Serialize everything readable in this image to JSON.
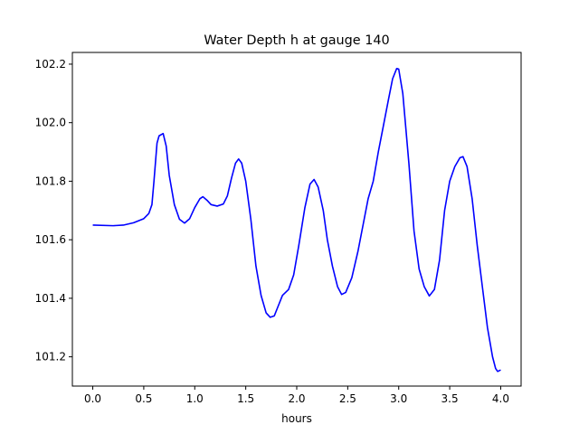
{
  "chart_data": {
    "type": "line",
    "title": "Water Depth h at gauge 140",
    "xlabel": "hours",
    "ylabel": "",
    "xlim": [
      -0.2,
      4.2
    ],
    "ylim": [
      101.1,
      102.24
    ],
    "xticks": [
      "0.0",
      "0.5",
      "1.0",
      "1.5",
      "2.0",
      "2.5",
      "3.0",
      "3.5",
      "4.0"
    ],
    "yticks": [
      "101.2",
      "101.4",
      "101.6",
      "101.8",
      "102.0",
      "102.2"
    ],
    "grid": false,
    "legend": "none",
    "series": [
      {
        "color": "#0000ff",
        "points": [
          [
            0.0,
            101.65
          ],
          [
            0.2,
            101.648
          ],
          [
            0.3,
            101.65
          ],
          [
            0.4,
            101.658
          ],
          [
            0.5,
            101.672
          ],
          [
            0.55,
            101.69
          ],
          [
            0.58,
            101.72
          ],
          [
            0.6,
            101.8
          ],
          [
            0.63,
            101.93
          ],
          [
            0.65,
            101.955
          ],
          [
            0.69,
            101.963
          ],
          [
            0.72,
            101.92
          ],
          [
            0.75,
            101.82
          ],
          [
            0.8,
            101.72
          ],
          [
            0.85,
            101.67
          ],
          [
            0.9,
            101.657
          ],
          [
            0.95,
            101.672
          ],
          [
            1.0,
            101.71
          ],
          [
            1.05,
            101.74
          ],
          [
            1.08,
            101.747
          ],
          [
            1.12,
            101.735
          ],
          [
            1.16,
            101.72
          ],
          [
            1.22,
            101.715
          ],
          [
            1.28,
            101.722
          ],
          [
            1.32,
            101.75
          ],
          [
            1.36,
            101.81
          ],
          [
            1.4,
            101.862
          ],
          [
            1.43,
            101.876
          ],
          [
            1.46,
            101.862
          ],
          [
            1.5,
            101.8
          ],
          [
            1.55,
            101.67
          ],
          [
            1.6,
            101.51
          ],
          [
            1.65,
            101.41
          ],
          [
            1.7,
            101.35
          ],
          [
            1.74,
            101.335
          ],
          [
            1.78,
            101.34
          ],
          [
            1.82,
            101.375
          ],
          [
            1.86,
            101.41
          ],
          [
            1.92,
            101.43
          ],
          [
            1.97,
            101.48
          ],
          [
            2.02,
            101.58
          ],
          [
            2.08,
            101.71
          ],
          [
            2.13,
            101.79
          ],
          [
            2.17,
            101.806
          ],
          [
            2.21,
            101.78
          ],
          [
            2.26,
            101.7
          ],
          [
            2.3,
            101.6
          ],
          [
            2.35,
            101.51
          ],
          [
            2.4,
            101.44
          ],
          [
            2.44,
            101.413
          ],
          [
            2.48,
            101.42
          ],
          [
            2.54,
            101.47
          ],
          [
            2.6,
            101.56
          ],
          [
            2.65,
            101.65
          ],
          [
            2.7,
            101.74
          ],
          [
            2.75,
            101.8
          ],
          [
            2.8,
            101.9
          ],
          [
            2.85,
            101.99
          ],
          [
            2.9,
            102.08
          ],
          [
            2.94,
            102.15
          ],
          [
            2.98,
            102.185
          ],
          [
            3.0,
            102.183
          ],
          [
            3.04,
            102.1
          ],
          [
            3.1,
            101.86
          ],
          [
            3.15,
            101.63
          ],
          [
            3.2,
            101.5
          ],
          [
            3.25,
            101.44
          ],
          [
            3.3,
            101.408
          ],
          [
            3.35,
            101.43
          ],
          [
            3.4,
            101.53
          ],
          [
            3.45,
            101.7
          ],
          [
            3.5,
            101.8
          ],
          [
            3.55,
            101.85
          ],
          [
            3.6,
            101.88
          ],
          [
            3.63,
            101.884
          ],
          [
            3.67,
            101.85
          ],
          [
            3.72,
            101.74
          ],
          [
            3.77,
            101.58
          ],
          [
            3.82,
            101.44
          ],
          [
            3.87,
            101.3
          ],
          [
            3.92,
            101.2
          ],
          [
            3.95,
            101.16
          ],
          [
            3.97,
            101.15
          ],
          [
            4.0,
            101.155
          ]
        ]
      }
    ]
  }
}
